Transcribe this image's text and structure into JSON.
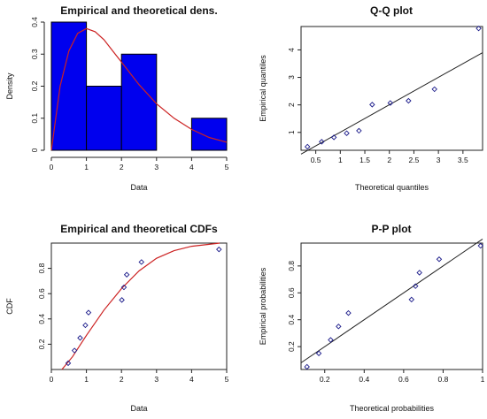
{
  "chart_data": [
    {
      "type": "bar",
      "title": "Empirical and theoretical dens.",
      "xlabel": "Data",
      "ylabel": "Density",
      "xlim": [
        0,
        5
      ],
      "ylim": [
        0,
        0.4
      ],
      "xticks": [
        0,
        1,
        2,
        3,
        4,
        5
      ],
      "yticks": [
        0.0,
        0.1,
        0.2,
        0.3,
        0.4
      ],
      "bins": [
        {
          "start": 0,
          "end": 1,
          "density": 0.4
        },
        {
          "start": 1,
          "end": 2,
          "density": 0.2
        },
        {
          "start": 2,
          "end": 3,
          "density": 0.3
        },
        {
          "start": 3,
          "end": 4,
          "density": 0.0
        },
        {
          "start": 4,
          "end": 5,
          "density": 0.1
        }
      ],
      "curve": {
        "x": [
          0,
          0.25,
          0.5,
          0.75,
          1.0,
          1.25,
          1.5,
          1.75,
          2.0,
          2.5,
          3.0,
          3.5,
          4.0,
          4.5,
          5.0
        ],
        "y": [
          0,
          0.2,
          0.31,
          0.365,
          0.38,
          0.37,
          0.345,
          0.31,
          0.275,
          0.205,
          0.145,
          0.1,
          0.065,
          0.04,
          0.025
        ]
      },
      "colors": {
        "bar": "#0000ee",
        "curve": "#cc2222"
      }
    },
    {
      "type": "scatter",
      "title": "Q-Q plot",
      "xlabel": "Theoretical quantiles",
      "ylabel": "Empirical quantiles",
      "xlim": [
        0.2,
        3.9
      ],
      "ylim": [
        0.35,
        4.85
      ],
      "xticks": [
        0.5,
        1.0,
        1.5,
        2.0,
        2.5,
        3.0,
        3.5
      ],
      "yticks": [
        1,
        2,
        3,
        4
      ],
      "points": {
        "x": [
          0.33,
          0.62,
          0.87,
          1.13,
          1.38,
          1.65,
          2.02,
          2.39,
          2.92,
          3.82
        ],
        "y": [
          0.48,
          0.66,
          0.82,
          0.97,
          1.06,
          2.01,
          2.07,
          2.15,
          2.57,
          4.78
        ]
      },
      "line": {
        "x": [
          0.2,
          3.9
        ],
        "y": [
          0.21,
          3.9
        ]
      }
    },
    {
      "type": "line",
      "title": "Empirical and theoretical CDFs",
      "xlabel": "Data",
      "ylabel": "CDF",
      "xlim": [
        0,
        5
      ],
      "ylim": [
        0,
        1.0
      ],
      "xticks": [
        0,
        1,
        2,
        3,
        4,
        5
      ],
      "yticks": [
        0.2,
        0.4,
        0.6,
        0.8
      ],
      "points": {
        "x": [
          0.48,
          0.66,
          0.82,
          0.97,
          1.06,
          2.01,
          2.07,
          2.15,
          2.57,
          4.78
        ],
        "y": [
          0.05,
          0.15,
          0.25,
          0.35,
          0.45,
          0.55,
          0.65,
          0.75,
          0.85,
          0.95
        ]
      },
      "curve": {
        "x": [
          0.3,
          0.6,
          1.0,
          1.5,
          2.0,
          2.5,
          3.0,
          3.5,
          4.0,
          4.5,
          4.8
        ],
        "y": [
          0.0,
          0.1,
          0.27,
          0.47,
          0.64,
          0.78,
          0.88,
          0.94,
          0.975,
          0.99,
          1.0
        ]
      },
      "colors": {
        "curve": "#cc2222"
      }
    },
    {
      "type": "scatter",
      "title": "P-P plot",
      "xlabel": "Theoretical probabilities",
      "ylabel": "Empirical probabilities",
      "xlim": [
        0.08,
        1.0
      ],
      "ylim": [
        0.03,
        0.97
      ],
      "xticks": [
        0.2,
        0.4,
        0.6,
        0.8,
        1.0
      ],
      "yticks": [
        0.2,
        0.4,
        0.6,
        0.8
      ],
      "points": {
        "x": [
          0.11,
          0.17,
          0.23,
          0.27,
          0.32,
          0.64,
          0.66,
          0.68,
          0.78,
          0.99
        ],
        "y": [
          0.05,
          0.15,
          0.25,
          0.35,
          0.45,
          0.55,
          0.65,
          0.75,
          0.85,
          0.95
        ]
      },
      "line": {
        "x": [
          0.08,
          1.0
        ],
        "y": [
          0.08,
          1.0
        ]
      }
    }
  ]
}
